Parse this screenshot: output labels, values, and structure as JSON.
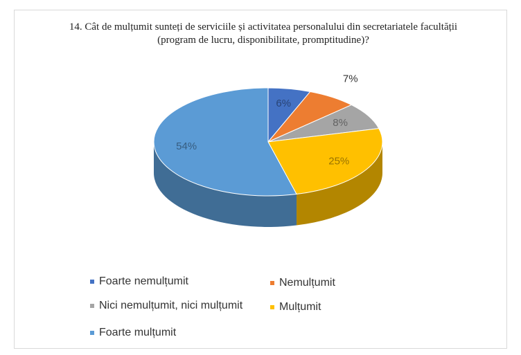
{
  "chart_data": {
    "type": "pie3d",
    "title": "14. Cât de mulțumit sunteți de serviciile și activitatea personalului din secretariatele facultății (program de lucru, disponibilitate, promptitudine)?",
    "categories": [
      "Foarte nemulțumit",
      "Nemulțumit",
      "Nici nemulțumit, nici mulțumit",
      "Mulțumit",
      "Foarte mulțumit"
    ],
    "values": [
      6,
      7,
      8,
      25,
      54
    ],
    "value_labels": [
      "6%",
      "7%",
      "8%",
      "25%",
      "54%"
    ],
    "colors": [
      "#4472c4",
      "#ed7d31",
      "#a5a5a5",
      "#ffc000",
      "#5b9bd5"
    ]
  }
}
